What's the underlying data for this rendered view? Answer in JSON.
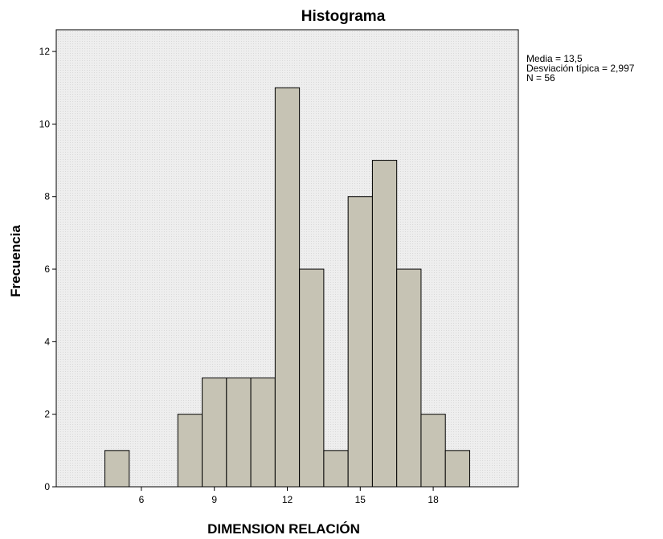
{
  "chart_data": {
    "type": "histogram",
    "title": "Histograma",
    "xlabel": "DIMENSION RELACIÓN",
    "ylabel": "Frecuencia",
    "xlim": [
      2.5,
      21.5
    ],
    "ylim": [
      0,
      12.6
    ],
    "bin_width": 1,
    "x_ticks": [
      6,
      9,
      12,
      15,
      18
    ],
    "y_ticks": [
      0,
      2,
      4,
      6,
      8,
      10,
      12
    ],
    "bins": [
      {
        "start": 4.5,
        "end": 5.5,
        "count": 1
      },
      {
        "start": 5.5,
        "end": 6.5,
        "count": 0
      },
      {
        "start": 6.5,
        "end": 7.5,
        "count": 0
      },
      {
        "start": 7.5,
        "end": 8.5,
        "count": 2
      },
      {
        "start": 8.5,
        "end": 9.5,
        "count": 3
      },
      {
        "start": 9.5,
        "end": 10.5,
        "count": 3
      },
      {
        "start": 10.5,
        "end": 11.5,
        "count": 3
      },
      {
        "start": 11.5,
        "end": 12.5,
        "count": 11
      },
      {
        "start": 12.5,
        "end": 13.5,
        "count": 6
      },
      {
        "start": 13.5,
        "end": 14.5,
        "count": 1
      },
      {
        "start": 14.5,
        "end": 15.5,
        "count": 8
      },
      {
        "start": 15.5,
        "end": 16.5,
        "count": 9
      },
      {
        "start": 16.5,
        "end": 17.5,
        "count": 6
      },
      {
        "start": 17.5,
        "end": 18.5,
        "count": 2
      },
      {
        "start": 18.5,
        "end": 19.5,
        "count": 1
      }
    ],
    "statistics": {
      "mean": "Media = 13,5",
      "std": "Desviación típica = 2,997",
      "n": "N = 56"
    },
    "plot_background": "#ececec",
    "bar_color": "#c6c3b4",
    "grid": false
  }
}
